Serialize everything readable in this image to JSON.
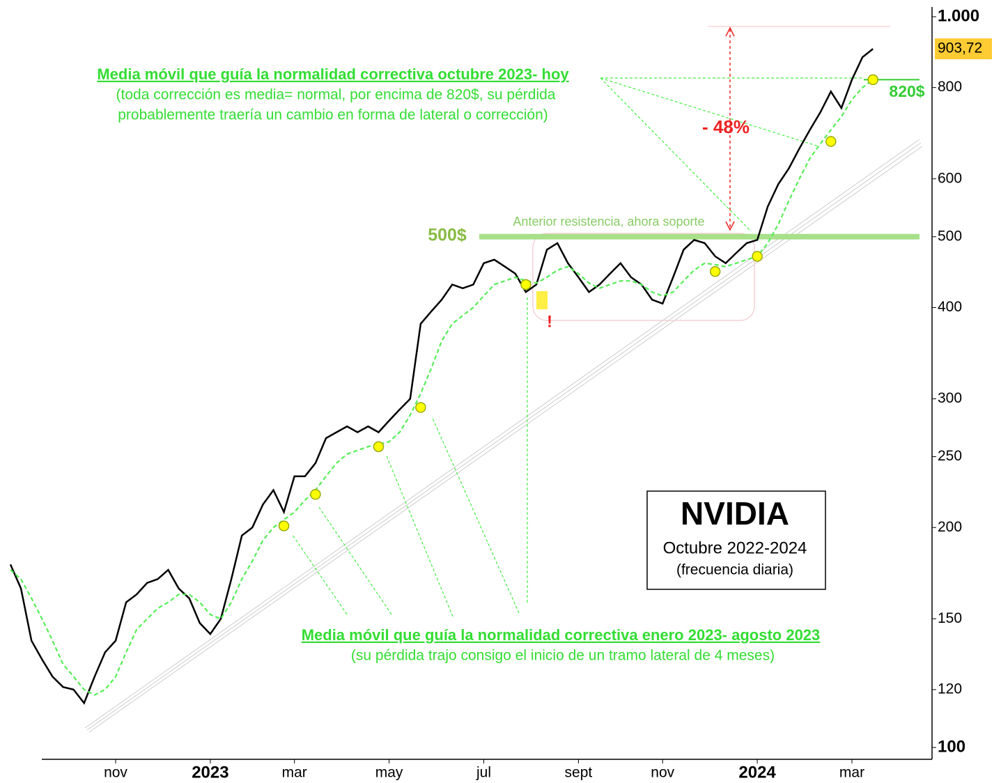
{
  "chart_data": {
    "type": "line",
    "log_scale": true,
    "categories": [
      null,
      null,
      null,
      null,
      null,
      null,
      null,
      null,
      null,
      null,
      "nov",
      null,
      null,
      null,
      null,
      null,
      null,
      null,
      null,
      "2023",
      null,
      null,
      null,
      null,
      null,
      null,
      null,
      "mar",
      null,
      null,
      null,
      null,
      null,
      null,
      null,
      null,
      "may",
      null,
      null,
      null,
      null,
      null,
      null,
      null,
      null,
      "jul",
      null,
      null,
      null,
      null,
      null,
      null,
      null,
      null,
      "sept",
      null,
      null,
      null,
      null,
      null,
      null,
      null,
      "nov",
      null,
      null,
      null,
      null,
      null,
      null,
      null,
      null,
      "2024",
      null,
      null,
      null,
      null,
      null,
      null,
      null,
      null,
      "mar",
      null,
      null
    ],
    "series": [
      {
        "color": "#000000",
        "values": [
          178,
          165,
          140,
          132,
          125,
          121,
          120,
          115,
          125,
          135,
          140,
          158,
          162,
          168,
          170,
          175,
          165,
          160,
          148,
          143,
          150,
          170,
          195,
          200,
          215,
          225,
          210,
          235,
          235,
          245,
          265,
          270,
          275,
          270,
          275,
          270,
          280,
          290,
          300,
          380,
          395,
          410,
          430,
          425,
          430,
          460,
          465,
          455,
          445,
          420,
          430,
          480,
          490,
          460,
          440,
          420,
          430,
          445,
          460,
          440,
          430,
          410,
          405,
          440,
          480,
          495,
          490,
          470,
          460,
          475,
          490,
          495,
          550,
          590,
          620,
          660,
          700,
          740,
          790,
          750,
          820,
          880,
          903.72
        ],
        "value_labels": [
          null,
          null,
          null,
          null,
          null,
          null,
          null,
          null,
          null,
          null,
          null,
          null,
          null,
          null,
          null,
          null,
          null,
          null,
          null,
          null,
          null,
          null,
          null,
          null,
          null,
          null,
          null,
          null,
          null,
          null,
          null,
          null,
          null,
          null,
          null,
          null,
          null,
          null,
          null,
          null,
          null,
          null,
          null,
          null,
          null,
          null,
          null,
          null,
          null,
          null,
          null,
          null,
          null,
          null,
          null,
          null,
          null,
          null,
          null,
          null,
          null,
          null,
          null,
          null,
          null,
          null,
          null,
          null,
          null,
          null,
          null,
          null,
          null,
          null,
          null,
          null,
          null,
          null,
          null,
          null,
          null,
          null,
          "903,72"
        ]
      },
      {
        "color": "#55ee55",
        "values": [
          175,
          170,
          160,
          150,
          140,
          130,
          125,
          120,
          118,
          120,
          125,
          135,
          145,
          150,
          155,
          158,
          162,
          162,
          158,
          152,
          150,
          158,
          170,
          180,
          192,
          200,
          205,
          210,
          218,
          225,
          235,
          245,
          252,
          255,
          258,
          260,
          262,
          270,
          285,
          305,
          330,
          360,
          380,
          390,
          400,
          415,
          430,
          435,
          440,
          435,
          432,
          440,
          450,
          455,
          445,
          432,
          425,
          430,
          435,
          435,
          430,
          420,
          415,
          420,
          435,
          450,
          460,
          458,
          455,
          460,
          465,
          470,
          490,
          520,
          560,
          600,
          640,
          670,
          700,
          730,
          770,
          800,
          820
        ]
      },
      {
        "color": "#ffff00",
        "values": [
          null,
          null,
          null,
          null,
          null,
          null,
          null,
          null,
          null,
          null,
          null,
          null,
          null,
          null,
          null,
          null,
          null,
          null,
          null,
          null,
          null,
          null,
          null,
          null,
          null,
          null,
          201,
          null,
          null,
          222,
          null,
          null,
          null,
          null,
          null,
          258,
          null,
          null,
          null,
          292,
          null,
          null,
          null,
          null,
          null,
          null,
          null,
          null,
          null,
          430,
          null,
          null,
          null,
          null,
          null,
          null,
          null,
          null,
          null,
          null,
          null,
          null,
          null,
          null,
          null,
          null,
          null,
          448,
          null,
          null,
          null,
          470,
          null,
          null,
          null,
          null,
          null,
          null,
          675,
          null,
          null,
          null,
          820
        ]
      }
    ],
    "ylim": [
      100,
      1000
    ],
    "yticks": [
      100,
      120,
      150,
      200,
      250,
      300,
      400,
      500,
      600,
      800,
      {
        "value": 1000,
        "label": "1.000"
      }
    ],
    "reference_lines": [
      500,
      820
    ],
    "annotations": [
      "Media móvil que guía la normalidad correctiva octubre 2023- hoy",
      "(toda corrección es media= normal, por encima de 820$, su pérdida",
      "probablemente traería un cambio en forma de lateral o corrección)",
      "- 48%",
      "Anterior resistencia, ahora soporte",
      "500$",
      "820$",
      "!",
      "NVIDIA",
      "Octubre 2022-2024",
      "(frecuencia diaria)",
      "Media móvil que guía la normalidad correctiva enero 2023- agosto 2023",
      "(su pérdida trajo consigo el inicio de un tramo lateral de 4 meses)"
    ]
  }
}
